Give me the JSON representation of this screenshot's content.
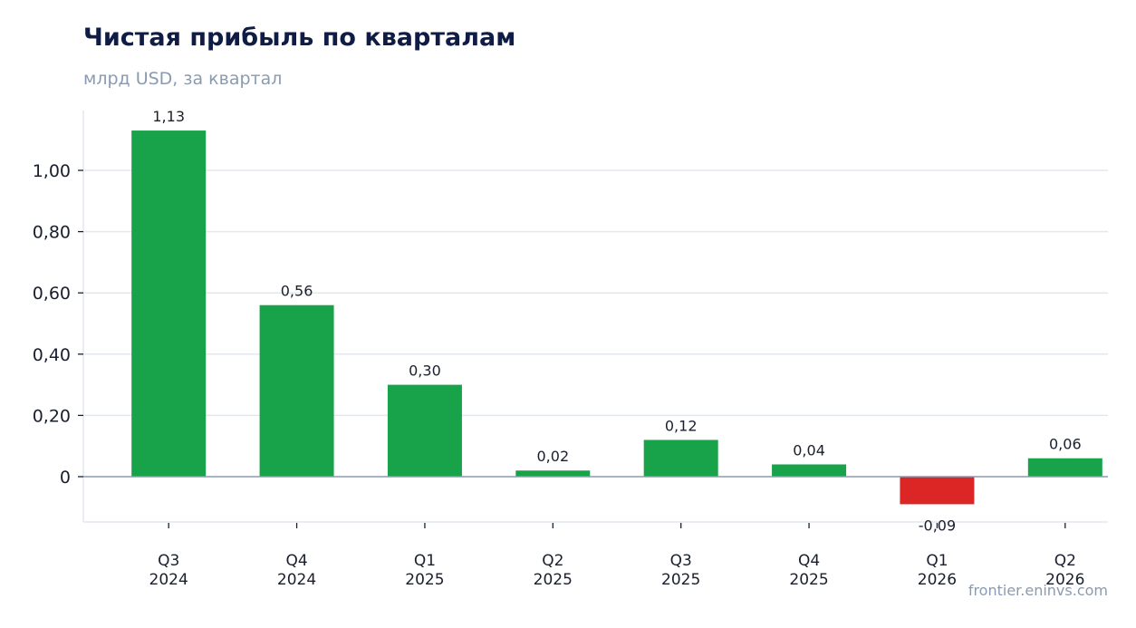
{
  "chart_data": {
    "type": "bar",
    "title": "Чистая прибыль по кварталам",
    "subtitle": "млрд USD, за квартал",
    "categories": [
      [
        "Q3",
        "2024"
      ],
      [
        "Q4",
        "2024"
      ],
      [
        "Q1",
        "2025"
      ],
      [
        "Q2",
        "2025"
      ],
      [
        "Q3",
        "2025"
      ],
      [
        "Q4",
        "2025"
      ],
      [
        "Q1",
        "2026"
      ],
      [
        "Q2",
        "2026"
      ]
    ],
    "values": [
      1.13,
      0.56,
      0.3,
      0.02,
      0.12,
      0.04,
      -0.09,
      0.06
    ],
    "value_labels": [
      "1,13",
      "0,56",
      "0,30",
      "0,02",
      "0,12",
      "0,04",
      "-0,09",
      "0,06"
    ],
    "yticks": [
      0,
      0.2,
      0.4,
      0.6,
      0.8,
      1.0
    ],
    "ytick_labels": [
      "0",
      "0,20",
      "0,40",
      "0,60",
      "0,80",
      "1,00"
    ],
    "ylim": [
      -0.15,
      1.19
    ],
    "grid": true,
    "colors": {
      "positive": "#18a34a",
      "negative": "#dc2626",
      "zero_line": "#8a9bb0",
      "grid": "#e3e8ef"
    }
  },
  "source_text": "frontier.eninvs.com"
}
